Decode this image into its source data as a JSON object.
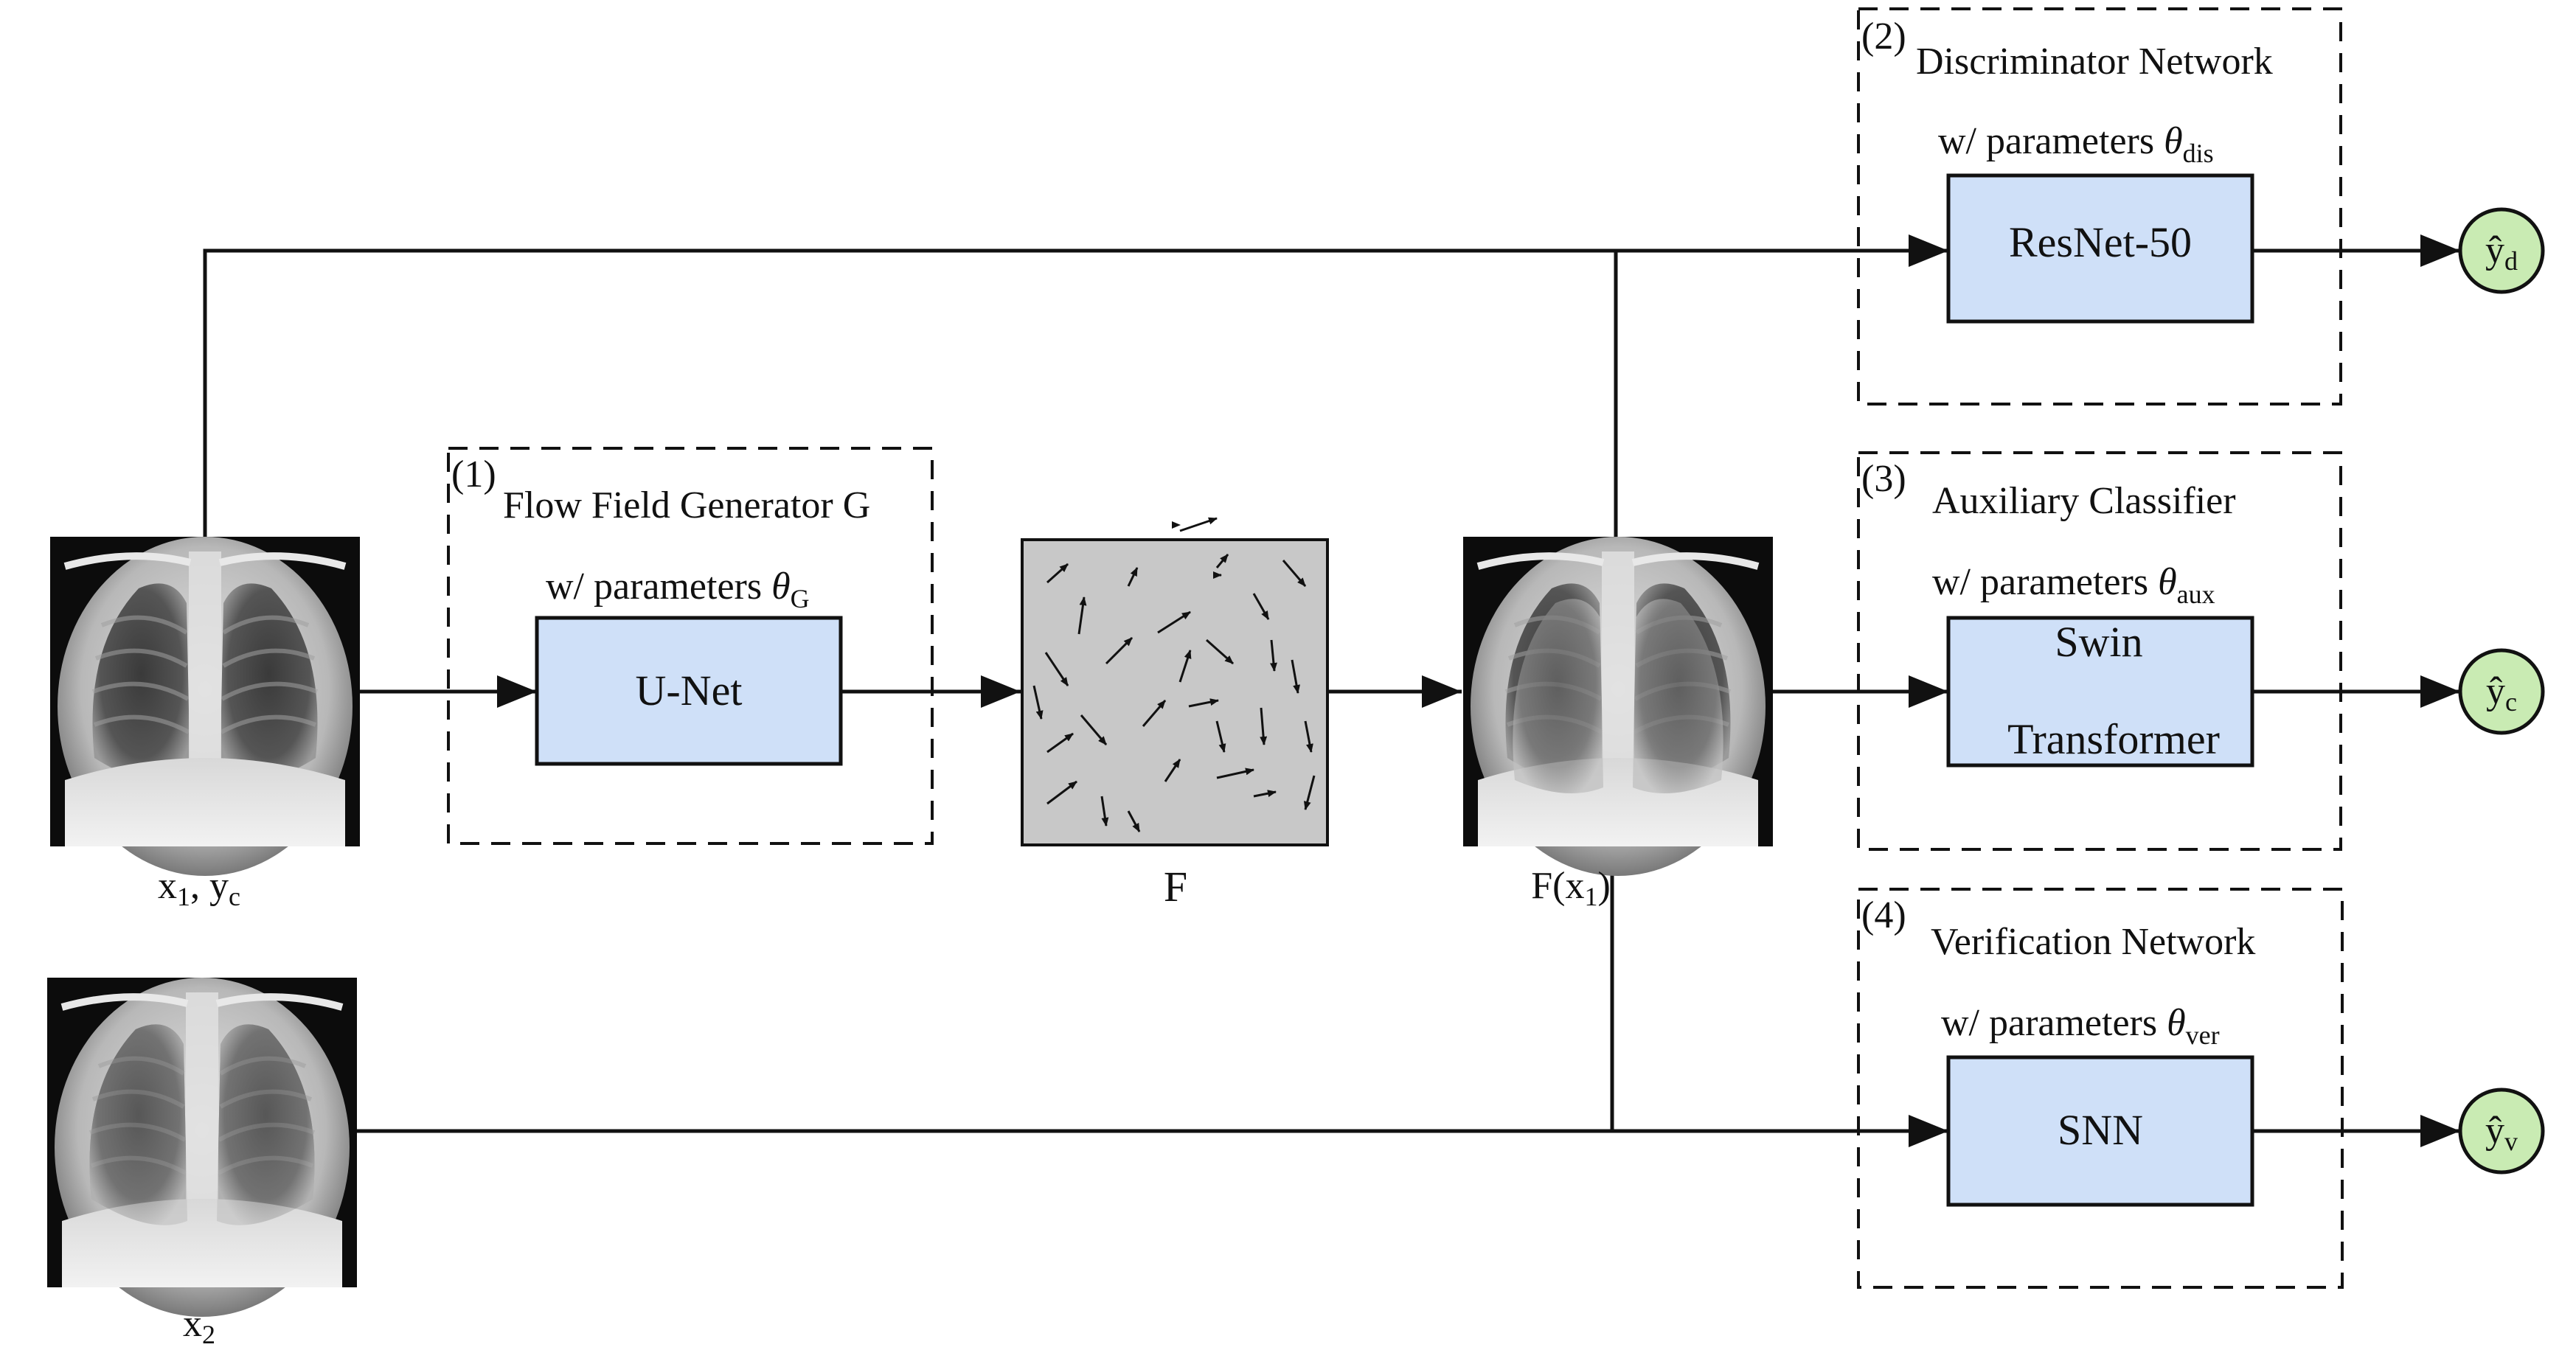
{
  "colors": {
    "box_fill": "#cfe0f8",
    "output_fill": "#c9ebb3",
    "flow_field_fill": "#c8c8c8",
    "line": "#111111"
  },
  "inputs": {
    "x1_label": "x",
    "x1_sub": "1",
    "x1_sep": ", y",
    "x1_sub2": "c",
    "x2_label": "x",
    "x2_sub": "2"
  },
  "generator": {
    "number": "(1)",
    "title": "Flow Field Generator G",
    "param_prefix": "w/ parameters ",
    "param_symbol": "θ",
    "param_sub": "G",
    "box_label": "U-Net"
  },
  "flow_field": {
    "label": "F"
  },
  "warped": {
    "label_prefix": "F(x",
    "label_sub": "1",
    "label_suffix": ")"
  },
  "discriminator": {
    "number": "(2)",
    "title": "Discriminator Network",
    "param_prefix": "w/ parameters ",
    "param_symbol": "θ",
    "param_sub": "dis",
    "box_label": "ResNet-50",
    "output_symbol": "ŷ",
    "output_sub": "d"
  },
  "auxiliary": {
    "number": "(3)",
    "title": "Auxiliary Classifier",
    "param_prefix": "w/ parameters ",
    "param_symbol": "θ",
    "param_sub": "aux",
    "box_label_line1": "Swin",
    "box_label_line2": "Transformer",
    "output_symbol": "ŷ",
    "output_sub": "c"
  },
  "verification": {
    "number": "(4)",
    "title": "Verification Network",
    "param_prefix": "w/ parameters ",
    "param_symbol": "θ",
    "param_sub": "ver",
    "box_label": "SNN",
    "output_symbol": "ŷ",
    "output_sub": "v"
  }
}
